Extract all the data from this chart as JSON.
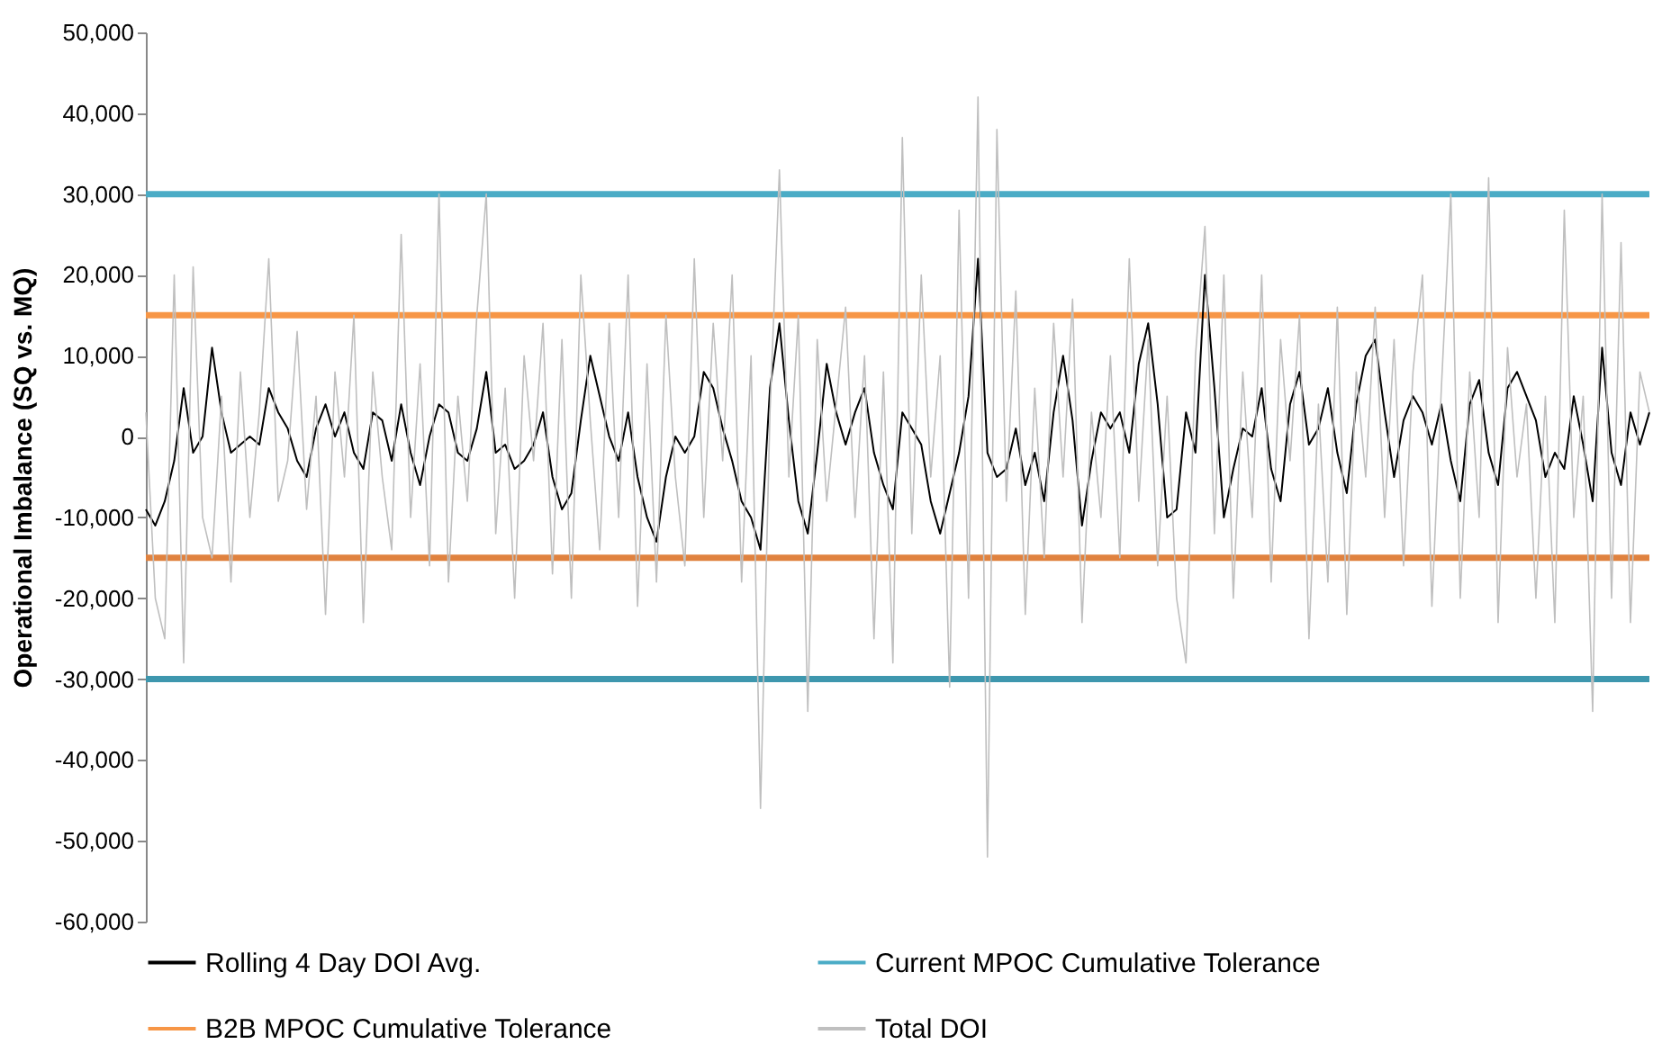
{
  "chart_data": {
    "type": "line",
    "ylabel": "Operational Imbalance (SQ vs. MQ)",
    "categories": [
      null,
      null,
      null,
      null,
      null,
      null,
      null,
      null,
      null,
      null,
      null,
      null,
      null,
      null,
      null,
      null,
      null,
      null,
      null,
      null,
      null,
      null,
      null,
      null,
      null,
      null,
      null,
      null,
      null,
      null,
      null,
      null,
      null,
      null,
      null,
      null,
      null,
      null,
      null,
      null,
      null,
      null,
      null,
      null,
      null,
      null,
      null,
      null,
      null,
      null,
      null,
      null,
      null,
      null,
      null,
      null,
      null,
      null,
      null,
      null,
      null,
      null,
      null,
      null,
      null,
      null,
      null,
      null,
      null,
      null,
      null,
      null,
      null,
      null,
      null,
      null,
      null,
      null,
      null,
      null,
      null,
      null,
      null,
      null,
      null,
      null,
      null,
      null,
      null,
      null,
      null,
      null,
      null,
      null,
      null,
      null,
      null,
      null,
      null,
      null,
      null,
      null,
      null,
      null,
      null,
      null,
      null,
      null,
      null,
      null,
      null,
      null,
      null,
      null,
      null,
      null,
      null,
      null,
      null,
      null,
      null,
      null,
      null,
      null,
      null,
      null,
      null,
      null,
      null,
      null,
      null,
      null,
      null,
      null,
      null,
      null,
      null,
      null,
      null,
      null,
      null,
      null,
      null,
      null,
      null,
      null,
      null,
      null,
      null,
      null,
      null,
      null,
      null,
      null,
      null,
      null,
      null,
      null,
      null,
      null
    ],
    "series": [
      {
        "name": "Rolling 4 Day DOI Avg.",
        "color": "#000000",
        "values": [
          -9000,
          -11000,
          -8000,
          -3000,
          6000,
          -2000,
          0,
          11000,
          3000,
          -2000,
          -1000,
          0,
          -1000,
          6000,
          3000,
          1000,
          -3000,
          -5000,
          1000,
          4000,
          0,
          3000,
          -2000,
          -4000,
          3000,
          2000,
          -3000,
          4000,
          -2000,
          -6000,
          0,
          4000,
          3000,
          -2000,
          -3000,
          1000,
          8000,
          -2000,
          -1000,
          -4000,
          -3000,
          -1000,
          3000,
          -5000,
          -9000,
          -7000,
          2000,
          10000,
          5000,
          0,
          -3000,
          3000,
          -5000,
          -10000,
          -13000,
          -5000,
          0,
          -2000,
          0,
          8000,
          6000,
          1000,
          -3000,
          -8000,
          -10000,
          -14000,
          6000,
          14000,
          2000,
          -8000,
          -12000,
          -2000,
          9000,
          3000,
          -1000,
          3000,
          6000,
          -2000,
          -6000,
          -9000,
          3000,
          1000,
          -1000,
          -8000,
          -12000,
          -7000,
          -2000,
          5000,
          22000,
          -2000,
          -5000,
          -4000,
          1000,
          -6000,
          -2000,
          -8000,
          3000,
          10000,
          2000,
          -11000,
          -3000,
          3000,
          1000,
          3000,
          -2000,
          9000,
          14000,
          4000,
          -10000,
          -9000,
          3000,
          -2000,
          20000,
          6000,
          -10000,
          -4000,
          1000,
          0,
          6000,
          -4000,
          -8000,
          4000,
          8000,
          -1000,
          1000,
          6000,
          -2000,
          -7000,
          4000,
          10000,
          12000,
          3000,
          -5000,
          2000,
          5000,
          3000,
          -1000,
          4000,
          -3000,
          -8000,
          4000,
          7000,
          -2000,
          -6000,
          6000,
          8000,
          5000,
          2000,
          -5000,
          -2000,
          -4000,
          5000,
          -1000,
          -8000,
          11000,
          -2000,
          -6000,
          3000,
          -1000,
          3000
        ]
      },
      {
        "name": "Total DOI",
        "color": "#bfbfbf",
        "values": [
          3000,
          -20000,
          -25000,
          20000,
          -28000,
          21000,
          -10000,
          -15000,
          5000,
          -18000,
          8000,
          -10000,
          3000,
          22000,
          -8000,
          -3000,
          13000,
          -9000,
          5000,
          -22000,
          8000,
          -5000,
          15000,
          -23000,
          8000,
          -5000,
          -14000,
          25000,
          -10000,
          9000,
          -16000,
          30000,
          -18000,
          5000,
          -8000,
          15000,
          30000,
          -12000,
          6000,
          -20000,
          10000,
          -3000,
          14000,
          -17000,
          12000,
          -20000,
          20000,
          2000,
          -14000,
          14000,
          -10000,
          20000,
          -21000,
          9000,
          -18000,
          15000,
          -5000,
          -16000,
          22000,
          -10000,
          14000,
          -3000,
          20000,
          -18000,
          10000,
          -46000,
          3000,
          33000,
          -5000,
          15000,
          -34000,
          12000,
          -8000,
          4000,
          16000,
          -10000,
          10000,
          -25000,
          8000,
          -28000,
          37000,
          -12000,
          20000,
          -5000,
          10000,
          -31000,
          28000,
          -20000,
          42000,
          -52000,
          38000,
          -8000,
          18000,
          -22000,
          6000,
          -15000,
          14000,
          -5000,
          17000,
          -23000,
          3000,
          -10000,
          10000,
          -15000,
          22000,
          -8000,
          12000,
          -16000,
          5000,
          -20000,
          -28000,
          10000,
          26000,
          -12000,
          20000,
          -20000,
          8000,
          -10000,
          20000,
          -18000,
          12000,
          -3000,
          15000,
          -25000,
          4000,
          -18000,
          16000,
          -22000,
          8000,
          -5000,
          16000,
          -10000,
          12000,
          -16000,
          8000,
          20000,
          -21000,
          6000,
          30000,
          -20000,
          8000,
          -10000,
          32000,
          -23000,
          11000,
          -5000,
          4000,
          -20000,
          5000,
          -23000,
          28000,
          -10000,
          5000,
          -34000,
          30000,
          -20000,
          24000,
          -23000,
          8000,
          3000
        ]
      }
    ],
    "ref_lines": [
      {
        "axis": "y",
        "value": 30000,
        "label": "Current MPOC Cumulative Tolerance",
        "color": "#4bacc6"
      },
      {
        "axis": "y",
        "value": 15000,
        "label": "B2B MPOC Cumulative Tolerance",
        "color": "#f79646"
      },
      {
        "axis": "y",
        "value": -15000,
        "label": null,
        "color": "#e0823f"
      },
      {
        "axis": "y",
        "value": -30000,
        "label": null,
        "color": "#3e97ae"
      }
    ],
    "ylim": [
      -60000,
      50000
    ],
    "yticks": [
      {
        "value": -60000,
        "label": "-60,000"
      },
      {
        "value": -50000,
        "label": "-50,000"
      },
      {
        "value": -40000,
        "label": "-40,000"
      },
      {
        "value": -30000,
        "label": "-30,000"
      },
      {
        "value": -20000,
        "label": "-20,000"
      },
      {
        "value": -10000,
        "label": "-10,000"
      },
      0,
      {
        "value": 10000,
        "label": "10,000"
      },
      {
        "value": 20000,
        "label": "20,000"
      },
      {
        "value": 30000,
        "label": "30,000"
      },
      {
        "value": 40000,
        "label": "40,000"
      },
      {
        "value": 50000,
        "label": "50,000"
      }
    ],
    "grid": false,
    "legend": "bottom",
    "marker": "none",
    "line_style": "solid"
  }
}
